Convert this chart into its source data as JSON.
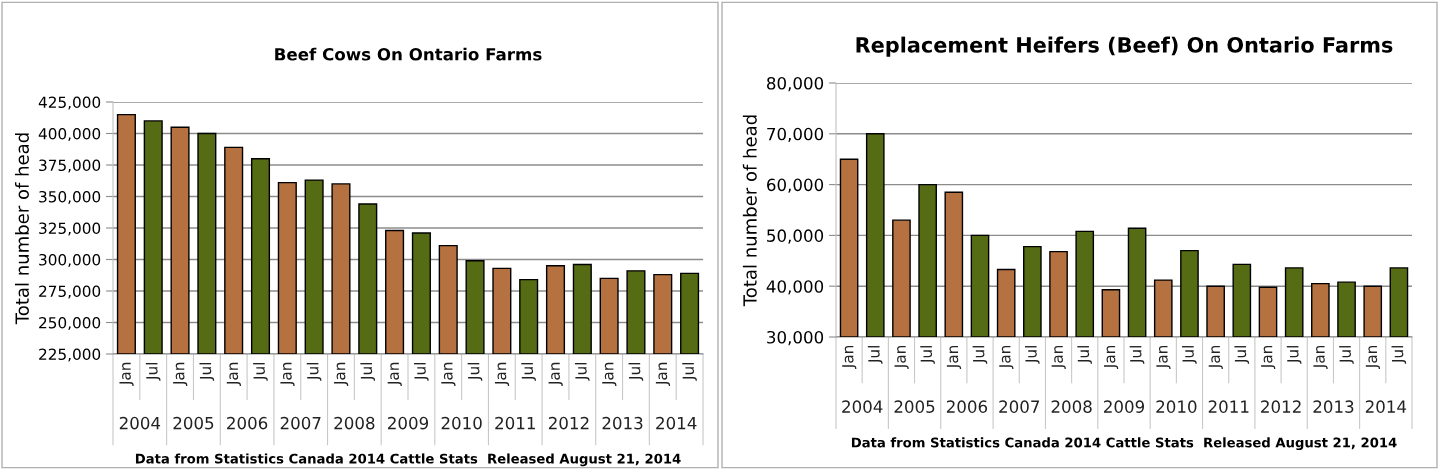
{
  "chart_data": [
    {
      "type": "bar",
      "title": "Beef Cows On Ontario Farms",
      "ylabel": "Total number of head",
      "categories": [
        "2004",
        "2005",
        "2006",
        "2007",
        "2008",
        "2009",
        "2010",
        "2011",
        "2012",
        "2013",
        "2014"
      ],
      "series": [
        {
          "name": "Jan",
          "color": "#b5713f",
          "values": [
            415000,
            405000,
            389000,
            361000,
            360000,
            323000,
            311000,
            293000,
            295000,
            285000,
            288000
          ]
        },
        {
          "name": "Jul",
          "color": "#556b14",
          "values": [
            410000,
            400000,
            380000,
            363000,
            344000,
            321000,
            299000,
            284000,
            296000,
            291000,
            289000
          ]
        }
      ],
      "ylim": [
        225000,
        425000
      ],
      "yticks": [
        {
          "value": 225000,
          "label": "225,000"
        },
        {
          "value": 250000,
          "label": "250,000"
        },
        {
          "value": 275000,
          "label": "275,000"
        },
        {
          "value": 300000,
          "label": "300,000"
        },
        {
          "value": 325000,
          "label": "325,000"
        },
        {
          "value": 350000,
          "label": "350,000"
        },
        {
          "value": 375000,
          "label": "375,000"
        },
        {
          "value": 400000,
          "label": "400,000"
        },
        {
          "value": 425000,
          "label": "425,000"
        }
      ],
      "grid": "y",
      "annotations": [
        "Data from Statistics Canada 2014 Cattle Stats  Released August 21, 2014"
      ]
    },
    {
      "type": "bar",
      "title": "Replacement Heifers (Beef) On Ontario Farms",
      "ylabel": "Total number of head",
      "categories": [
        "2004",
        "2005",
        "2006",
        "2007",
        "2008",
        "2009",
        "2010",
        "2011",
        "2012",
        "2013",
        "2014"
      ],
      "series": [
        {
          "name": "Jan",
          "color": "#b5713f",
          "values": [
            65000,
            53000,
            58500,
            43300,
            46800,
            39300,
            41200,
            40000,
            39800,
            40500,
            40000
          ]
        },
        {
          "name": "Jul",
          "color": "#556b14",
          "values": [
            70000,
            60000,
            50000,
            47800,
            50800,
            51400,
            47000,
            44300,
            43600,
            40800,
            43600
          ]
        }
      ],
      "ylim": [
        30000,
        80000
      ],
      "yticks": [
        {
          "value": 30000,
          "label": "30,000"
        },
        {
          "value": 40000,
          "label": "40,000"
        },
        {
          "value": 50000,
          "label": "50,000"
        },
        {
          "value": 60000,
          "label": "60,000"
        },
        {
          "value": 70000,
          "label": "70,000"
        },
        {
          "value": 80000,
          "label": "80,000"
        }
      ],
      "grid": "y",
      "annotations": [
        "Data from Statistics Canada 2014 Cattle Stats  Released August 21, 2014"
      ]
    }
  ]
}
